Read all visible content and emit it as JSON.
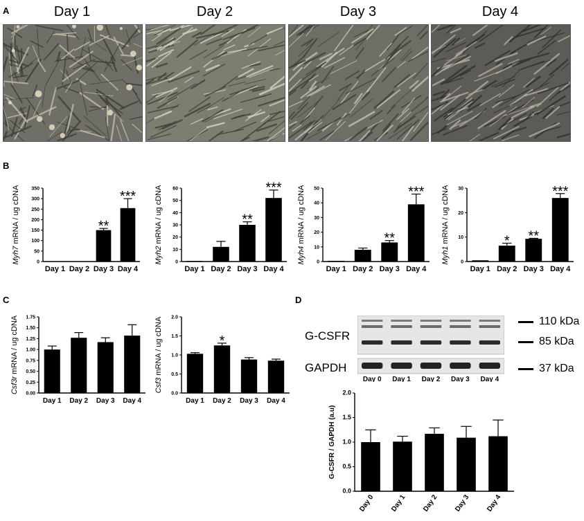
{
  "panels": {
    "a": "A",
    "b": "B",
    "c": "C",
    "d": "D"
  },
  "micrographs": {
    "titles": [
      "Day 1",
      "Day 2",
      "Day 3",
      "Day 4"
    ]
  },
  "blot": {
    "lane_labels": [
      "Day 0",
      "Day 1",
      "Day 2",
      "Day 3",
      "Day 4"
    ],
    "row_labels": [
      "G-CSFR",
      "GAPDH"
    ],
    "markers": [
      "110 kDa",
      "85 kDa",
      "37 kDa"
    ]
  },
  "chart_data": [
    {
      "id": "myh7",
      "type": "bar",
      "categories": [
        "Day 1",
        "Day 2",
        "Day 3",
        "Day 4"
      ],
      "values": [
        0,
        0,
        150,
        255
      ],
      "errors": [
        0,
        0,
        8,
        45
      ],
      "significance": [
        "",
        "",
        "**",
        "***"
      ],
      "ylabel_italic": "Myh7",
      "ylabel_rest": " mRNA / ug cDNA",
      "ylim": [
        0,
        350
      ],
      "yticks": [
        0,
        50,
        100,
        150,
        200,
        250,
        300,
        350
      ],
      "ytick_labels": [
        "0",
        "50",
        "100",
        "150",
        "200",
        "250",
        "300",
        "350"
      ]
    },
    {
      "id": "myh2",
      "type": "bar",
      "categories": [
        "Day 1",
        "Day 2",
        "Day 3",
        "Day 4"
      ],
      "values": [
        0.5,
        12,
        30,
        52
      ],
      "errors": [
        0,
        4.5,
        2.5,
        6.5
      ],
      "significance": [
        "",
        "",
        "**",
        "***"
      ],
      "ylabel_italic": "Myh2",
      "ylabel_rest": " mRNA / ug cDNA",
      "ylim": [
        0,
        60
      ],
      "yticks": [
        0,
        10,
        20,
        30,
        40,
        50,
        60
      ],
      "ytick_labels": [
        "0",
        "10",
        "20",
        "30",
        "40",
        "50",
        "60"
      ]
    },
    {
      "id": "myh4",
      "type": "bar",
      "categories": [
        "Day 1",
        "Day 2",
        "Day 3",
        "Day 4"
      ],
      "values": [
        0.5,
        8,
        13,
        39
      ],
      "errors": [
        0,
        1.2,
        1.3,
        7
      ],
      "significance": [
        "",
        "",
        "**",
        "***"
      ],
      "ylabel_italic": "Myh4",
      "ylabel_rest": " mRNA / ug cDNA",
      "ylim": [
        0,
        50
      ],
      "yticks": [
        0,
        10,
        20,
        30,
        40,
        50
      ],
      "ytick_labels": [
        "0",
        "10",
        "20",
        "30",
        "40",
        "50"
      ]
    },
    {
      "id": "myh1",
      "type": "bar",
      "categories": [
        "Day 1",
        "Day 2",
        "Day 3",
        "Day 4"
      ],
      "values": [
        0.5,
        6.5,
        9.3,
        26
      ],
      "errors": [
        0,
        1,
        0.2,
        1.8
      ],
      "significance": [
        "",
        "*",
        "**",
        "***"
      ],
      "ylabel_italic": "Myh1",
      "ylabel_rest": " mRNA / ug cDNA",
      "ylim": [
        0,
        30
      ],
      "yticks": [
        0,
        10,
        20,
        30
      ],
      "ytick_labels": [
        "0",
        "10",
        "20",
        "30"
      ]
    },
    {
      "id": "csf3r",
      "type": "bar",
      "categories": [
        "Day 1",
        "Day 2",
        "Day 3",
        "Day 4"
      ],
      "values": [
        1.0,
        1.27,
        1.17,
        1.32
      ],
      "errors": [
        0.08,
        0.12,
        0.1,
        0.25
      ],
      "significance": [
        "",
        "",
        "",
        ""
      ],
      "ylabel_italic": "Csf3r",
      "ylabel_rest": " mRNA / ug cDNA",
      "ylim": [
        0,
        1.75
      ],
      "yticks": [
        0,
        0.25,
        0.5,
        0.75,
        1.0,
        1.25,
        1.5,
        1.75
      ],
      "ytick_labels": [
        "0.00",
        "0.25",
        "0.50",
        "0.75",
        "1.00",
        "1.25",
        "1.50",
        "1.75"
      ]
    },
    {
      "id": "csf3",
      "type": "bar",
      "categories": [
        "Day 1",
        "Day 2",
        "Day 3",
        "Day 4"
      ],
      "values": [
        1.03,
        1.25,
        0.88,
        0.85
      ],
      "errors": [
        0.03,
        0.06,
        0.05,
        0.04
      ],
      "significance": [
        "",
        "*",
        "",
        ""
      ],
      "ylabel_italic": "Csf3",
      "ylabel_rest": " mRNA / ug cDNA",
      "ylim": [
        0,
        2.0
      ],
      "yticks": [
        0,
        0.5,
        1.0,
        1.5,
        2.0
      ],
      "ytick_labels": [
        "0.0",
        "0.5",
        "1.0",
        "1.5",
        "2.0"
      ]
    },
    {
      "id": "gcsfr",
      "type": "bar",
      "categories": [
        "Day 0",
        "Day 1",
        "Day 2",
        "Day 3",
        "Day 4"
      ],
      "values": [
        1.0,
        1.01,
        1.17,
        1.09,
        1.12
      ],
      "errors": [
        0.25,
        0.11,
        0.12,
        0.23,
        0.33
      ],
      "significance": [
        "",
        "",
        "",
        "",
        ""
      ],
      "ylabel_italic": "",
      "ylabel_rest": "G-CSFR / GAPDH (a.u)",
      "ylim": [
        0,
        2.0
      ],
      "yticks": [
        0,
        0.5,
        1.0,
        1.5,
        2.0
      ],
      "ytick_labels": [
        "0.0",
        "0.5",
        "1.0",
        "1.5",
        "2.0"
      ]
    }
  ]
}
